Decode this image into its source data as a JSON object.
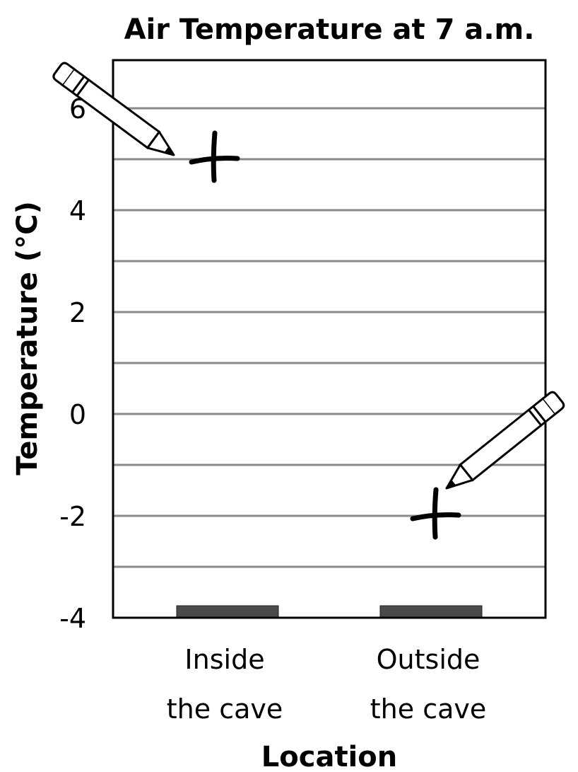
{
  "chart_data": {
    "type": "bar",
    "title": "Air Temperature at 7 a.m.",
    "xlabel": "Location",
    "ylabel": "Temperature (°C)",
    "categories": [
      {
        "line1": "Inside",
        "line2": "the cave"
      },
      {
        "line1": "Outside",
        "line2": "the cave"
      }
    ],
    "values": [
      -4,
      -4
    ],
    "marked_values": [
      5,
      -2
    ],
    "ylim": [
      -4,
      7
    ],
    "yticks": [
      6,
      4,
      2,
      0,
      -2,
      -4
    ],
    "ytick_labels": [
      "6",
      "4",
      "2",
      "0",
      "-2",
      "-4"
    ],
    "grid_step": 1,
    "grid": true,
    "bar_color": "#4a4a4a",
    "grid_color": "#8a8a8a"
  }
}
